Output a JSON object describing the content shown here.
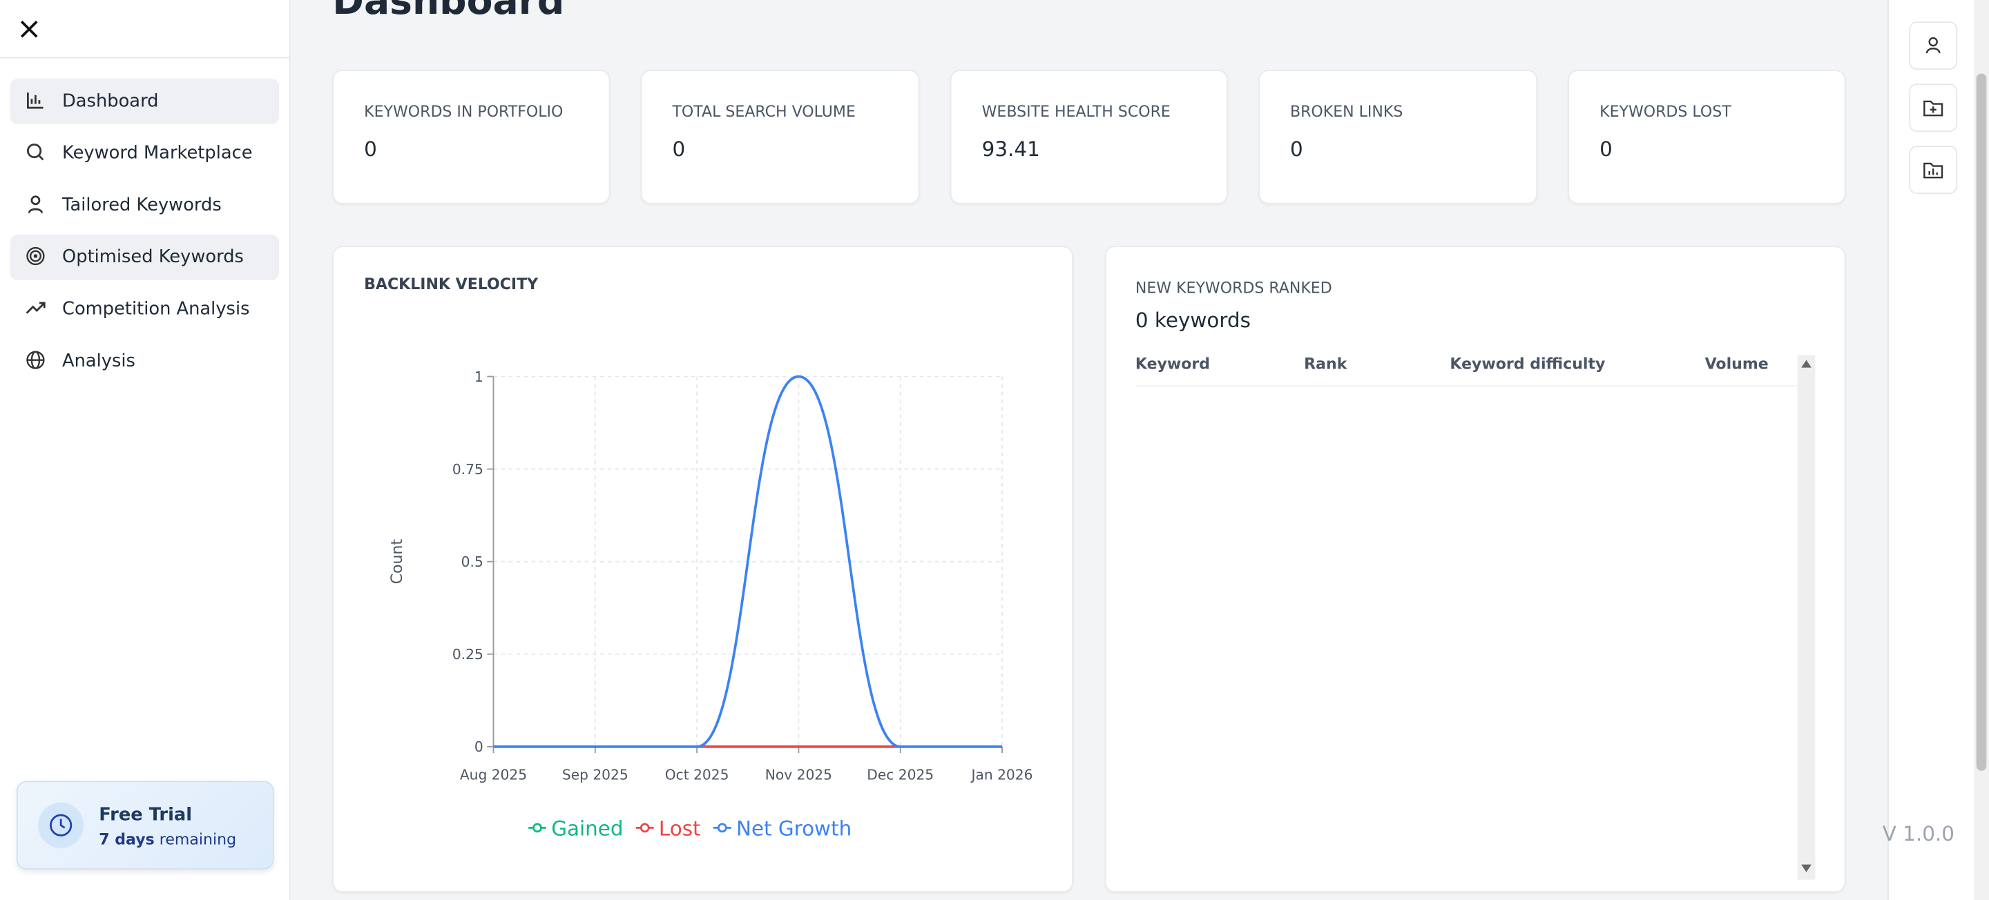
{
  "sidebar": {
    "nav": [
      "Dashboard",
      "Keyword Marketplace",
      "Tailored Keywords",
      "Optimised Keywords",
      "Competition Analysis",
      "Analysis"
    ],
    "trial": {
      "title": "Free Trial",
      "days": "7 days",
      "remaining": "remaining"
    }
  },
  "header": {
    "title": "Dashboard"
  },
  "stats": [
    {
      "label": "KEYWORDS IN PORTFOLIO",
      "value": 0
    },
    {
      "label": "TOTAL SEARCH VOLUME",
      "value": 0
    },
    {
      "label": "WEBSITE HEALTH SCORE",
      "value": 93.41
    },
    {
      "label": "BROKEN LINKS",
      "value": 0
    },
    {
      "label": "KEYWORDS LOST",
      "value": 0
    }
  ],
  "chart_data": {
    "type": "line",
    "title": "BACKLINK VELOCITY",
    "y_label": "Count",
    "categories": [
      "Aug 2025",
      "Sep 2025",
      "Oct 2025",
      "Nov 2025",
      "Dec 2025",
      "Jan 2026"
    ],
    "series": [
      {
        "name": "Gained",
        "color": "#10b981",
        "values": [
          0,
          0,
          0,
          0,
          0,
          0
        ]
      },
      {
        "name": "Lost",
        "color": "#ef4444",
        "values": [
          0,
          0,
          0,
          0,
          0,
          0
        ]
      },
      {
        "name": "Net Growth",
        "color": "#3b82f6",
        "values": [
          0,
          0,
          0,
          1,
          0,
          0
        ]
      }
    ],
    "ylim": [
      0,
      1
    ],
    "yticks": [
      0,
      0.25,
      0.5,
      0.75,
      1
    ],
    "grid": true
  },
  "keywords": {
    "title": "NEW KEYWORDS RANKED",
    "count": "0 keywords",
    "columns": [
      "Keyword",
      "Rank",
      "Keyword difficulty",
      "Volume"
    ]
  },
  "version": "V 1.0.0"
}
